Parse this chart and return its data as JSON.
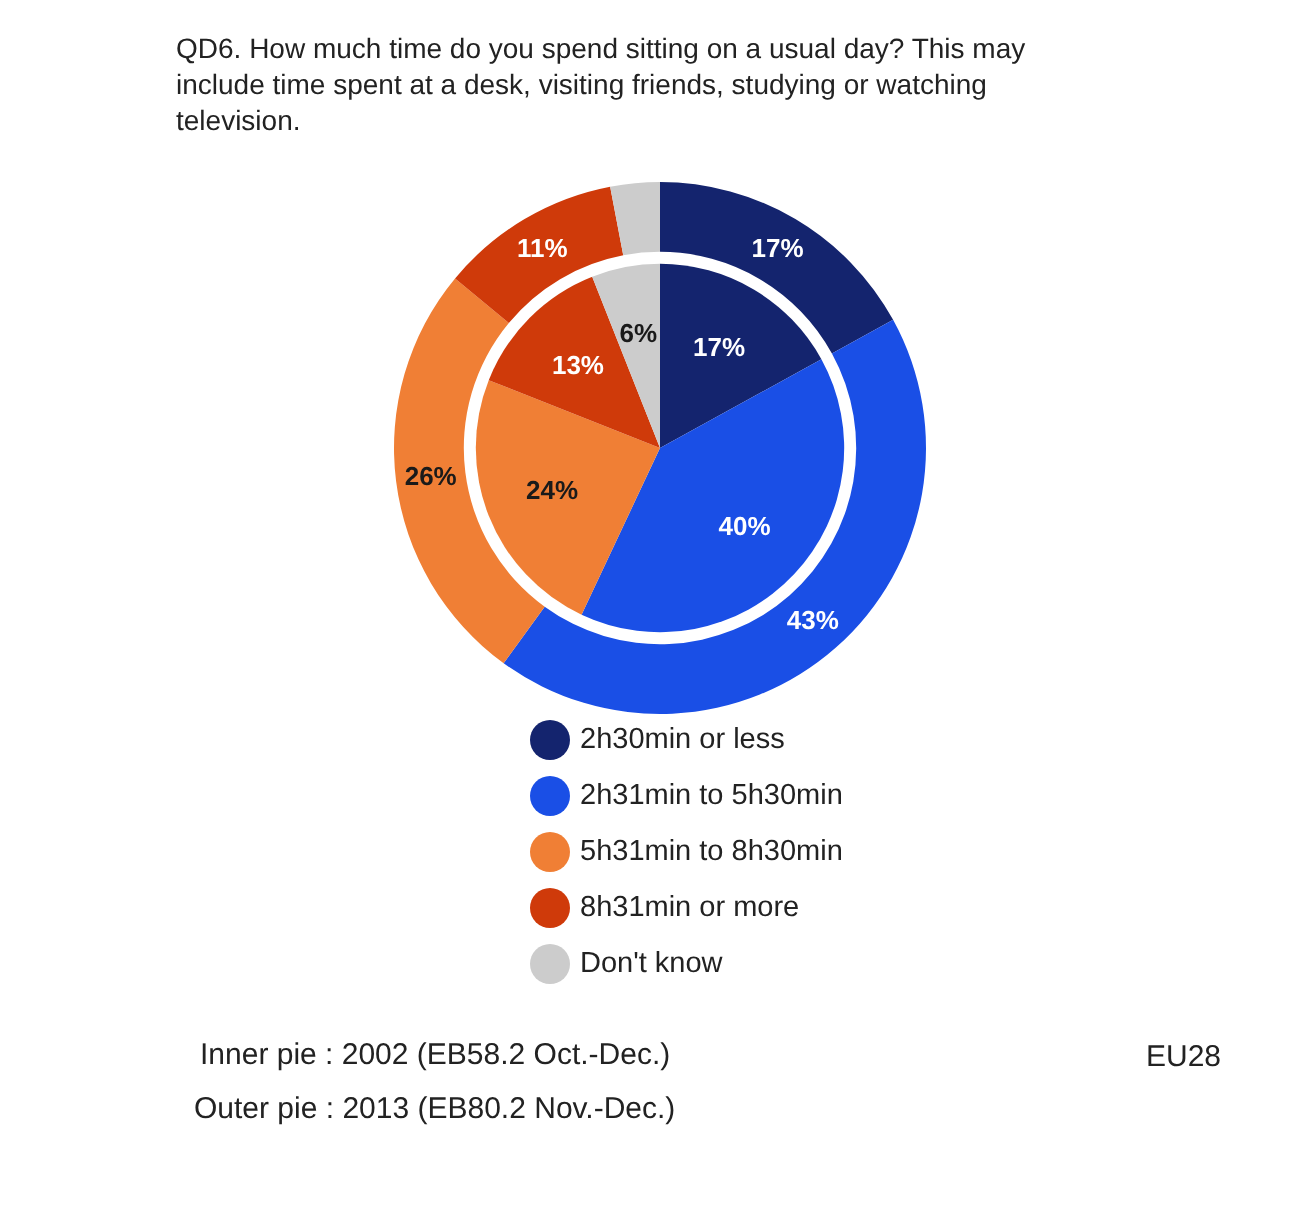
{
  "chart_data": {
    "type": "pie",
    "title": "QD6. How much time do you spend sitting on a usual day? This may include time spent at a desk, visiting friends, studying or watching television.",
    "categories": [
      "2h30min or less",
      "2h31min to 5h30min",
      "5h31min to 8h30min",
      "8h31min or more",
      "Don't know"
    ],
    "colors": [
      "#14246e",
      "#1a4fe6",
      "#f07f35",
      "#cf3a0a",
      "#cccccc"
    ],
    "series": [
      {
        "values": [
          17,
          40,
          24,
          13,
          6
        ],
        "value_labels": [
          "17%",
          "40%",
          "24%",
          "13%",
          "6%"
        ]
      },
      {
        "values": [
          17,
          43,
          26,
          11,
          3
        ],
        "value_labels": [
          "17%",
          "43%",
          "26%",
          "11%",
          null
        ]
      }
    ],
    "legend": "bottom",
    "annotations": [
      "Inner pie : 2002 (EB58.2 Oct.-Dec.)",
      "Outer pie : 2013 (EB80.2 Nov.-Dec.)",
      "EU28"
    ]
  }
}
